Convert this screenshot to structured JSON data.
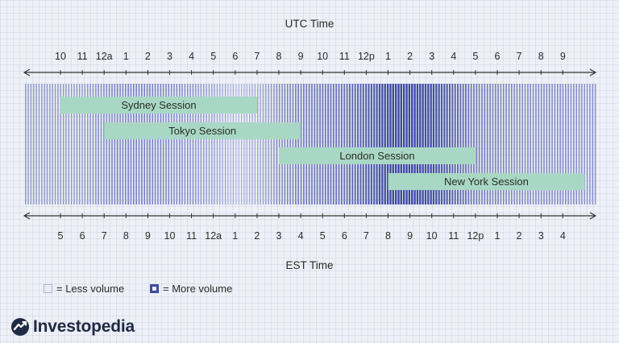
{
  "utc_axis": {
    "title": "UTC Time",
    "ticks": [
      "10",
      "11",
      "12a",
      "1",
      "2",
      "3",
      "4",
      "5",
      "6",
      "7",
      "8",
      "9",
      "10",
      "11",
      "12p",
      "1",
      "2",
      "3",
      "4",
      "5",
      "6",
      "7",
      "8",
      "9"
    ]
  },
  "est_axis": {
    "title": "EST Time",
    "ticks": [
      "5",
      "6",
      "7",
      "8",
      "9",
      "10",
      "11",
      "12a",
      "1",
      "2",
      "3",
      "4",
      "5",
      "6",
      "7",
      "8",
      "9",
      "10",
      "11",
      "12p",
      "1",
      "2",
      "3",
      "4"
    ]
  },
  "sessions": [
    {
      "name": "Sydney Session",
      "start_tick": 0,
      "end_tick": 9
    },
    {
      "name": "Tokyo Session",
      "start_tick": 2,
      "end_tick": 11
    },
    {
      "name": "London Session",
      "start_tick": 10,
      "end_tick": 19
    },
    {
      "name": "New York Session",
      "start_tick": 15,
      "end_tick": 24
    }
  ],
  "volume_profile": [
    0.35,
    0.35,
    0.45,
    0.5,
    0.5,
    0.45,
    0.4,
    0.3,
    0.15,
    0.25,
    0.45,
    0.55,
    0.6,
    0.65,
    0.8,
    1.0,
    1.0,
    0.95,
    0.75,
    0.55,
    0.5,
    0.45,
    0.45,
    0.45,
    0.4
  ],
  "legend": {
    "less": "= Less volume",
    "more": "= More volume"
  },
  "logo": {
    "text": "Investopedia"
  },
  "colors": {
    "session_fill": "#a8d8c5",
    "stripe_light": "#b8c0e0",
    "stripe_dark": "#3d4a9f",
    "axis": "#333333"
  }
}
